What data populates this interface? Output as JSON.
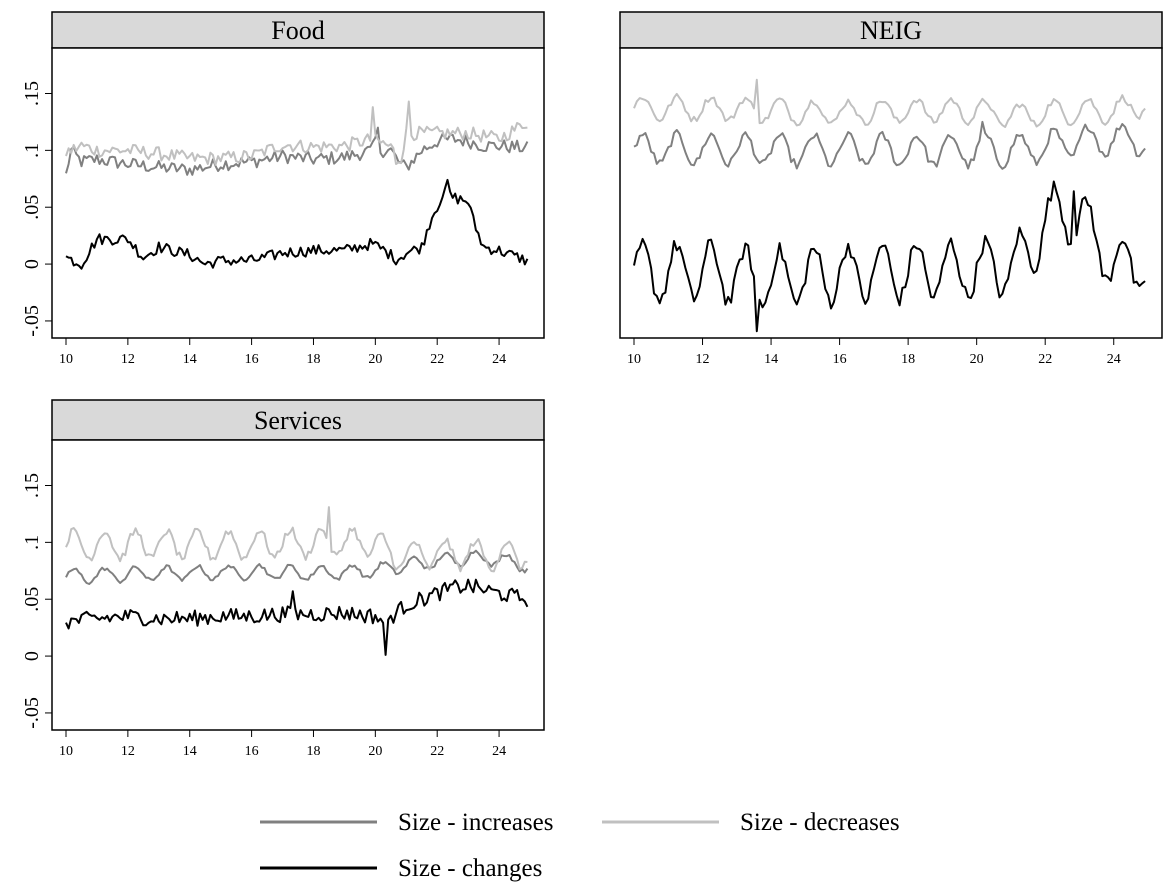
{
  "chart_data": [
    {
      "type": "line",
      "title": "Food",
      "xlim": [
        10,
        25
      ],
      "ylim": [
        -0.065,
        0.19
      ],
      "x_ticks": [
        "10",
        "12",
        "14",
        "16",
        "18",
        "20",
        "22",
        "24"
      ],
      "y_ticks": [
        "-.05",
        "0",
        ".05",
        ".1",
        ".15"
      ],
      "grid": false,
      "series": [
        {
          "name": "Size - increases",
          "color": "#808080",
          "style": "smooth",
          "base": [
            [
              10,
              0.078
            ],
            [
              10.15,
              0.1
            ],
            [
              10.5,
              0.09
            ],
            [
              11,
              0.092
            ],
            [
              12,
              0.088
            ],
            [
              13,
              0.085
            ],
            [
              14,
              0.083
            ],
            [
              15,
              0.088
            ],
            [
              16,
              0.09
            ],
            [
              17,
              0.095
            ],
            [
              18,
              0.092
            ],
            [
              19,
              0.094
            ],
            [
              19.9,
              0.1
            ],
            [
              20,
              0.11
            ],
            [
              20.1,
              0.1
            ],
            [
              20.5,
              0.1
            ],
            [
              20.8,
              0.088
            ],
            [
              21,
              0.085
            ],
            [
              21.5,
              0.1
            ],
            [
              22,
              0.108
            ],
            [
              22.5,
              0.11
            ],
            [
              23,
              0.108
            ],
            [
              23.5,
              0.104
            ],
            [
              24,
              0.104
            ],
            [
              24.9,
              0.102
            ]
          ],
          "amp": 0.006,
          "spikes": [
            [
              20.1,
              0.12
            ]
          ]
        },
        {
          "name": "Size - decreases",
          "color": "#c0c0c0",
          "style": "smooth",
          "base": [
            [
              10,
              0.098
            ],
            [
              10.5,
              0.104
            ],
            [
              11,
              0.1
            ],
            [
              12,
              0.1
            ],
            [
              13,
              0.097
            ],
            [
              14,
              0.093
            ],
            [
              15,
              0.093
            ],
            [
              16,
              0.095
            ],
            [
              17,
              0.105
            ],
            [
              18,
              0.103
            ],
            [
              19,
              0.104
            ],
            [
              19.9,
              0.11
            ],
            [
              20.5,
              0.103
            ],
            [
              20.8,
              0.09
            ],
            [
              21,
              0.115
            ],
            [
              21.5,
              0.115
            ],
            [
              22,
              0.115
            ],
            [
              22.5,
              0.115
            ],
            [
              23,
              0.115
            ],
            [
              24,
              0.11
            ],
            [
              24.9,
              0.125
            ]
          ],
          "amp": 0.006,
          "spikes": [
            [
              19.95,
              0.138
            ],
            [
              21.05,
              0.143
            ],
            [
              20.7,
              0.088
            ]
          ]
        },
        {
          "name": "Size - changes",
          "color": "#000000",
          "style": "smooth",
          "base": [
            [
              10,
              0.006
            ],
            [
              10.5,
              0.0
            ],
            [
              11,
              0.022
            ],
            [
              12,
              0.022
            ],
            [
              12.5,
              0.006
            ],
            [
              13,
              0.015
            ],
            [
              14,
              0.008
            ],
            [
              14.5,
              0.0
            ],
            [
              15,
              0.003
            ],
            [
              16,
              0.003
            ],
            [
              16.5,
              0.006
            ],
            [
              17,
              0.01
            ],
            [
              18,
              0.012
            ],
            [
              19,
              0.012
            ],
            [
              19.9,
              0.018
            ],
            [
              20.3,
              0.012
            ],
            [
              20.7,
              0.004
            ],
            [
              21,
              0.01
            ],
            [
              21.5,
              0.015
            ],
            [
              21.8,
              0.04
            ],
            [
              22.2,
              0.062
            ],
            [
              22.6,
              0.058
            ],
            [
              23,
              0.055
            ],
            [
              23.2,
              0.035
            ],
            [
              23.5,
              0.015
            ],
            [
              24,
              0.012
            ],
            [
              24.9,
              0.003
            ]
          ],
          "amp": 0.005,
          "spikes": [
            [
              22.3,
              0.074
            ]
          ]
        }
      ]
    },
    {
      "type": "line",
      "title": "NEIG",
      "xlim": [
        10,
        25
      ],
      "ylim": [
        -0.065,
        0.19
      ],
      "x_ticks": [
        "10",
        "12",
        "14",
        "16",
        "18",
        "20",
        "22",
        "24"
      ],
      "y_ticks": [],
      "grid": false,
      "series": [
        {
          "name": "Size - increases",
          "color": "#808080",
          "style": "seasonal",
          "base": [
            [
              10,
              0.101
            ],
            [
              12,
              0.101
            ],
            [
              14,
              0.1
            ],
            [
              16,
              0.1
            ],
            [
              18,
              0.1
            ],
            [
              20,
              0.1
            ],
            [
              21,
              0.1
            ],
            [
              22,
              0.103
            ],
            [
              23,
              0.108
            ],
            [
              24,
              0.11
            ],
            [
              24.9,
              0.11
            ]
          ],
          "amp": 0.013,
          "spikes": [
            [
              20.2,
              0.125
            ]
          ]
        },
        {
          "name": "Size - decreases",
          "color": "#c0c0c0",
          "style": "seasonal",
          "base": [
            [
              10,
              0.137
            ],
            [
              12,
              0.137
            ],
            [
              14,
              0.135
            ],
            [
              16,
              0.133
            ],
            [
              18,
              0.135
            ],
            [
              20,
              0.135
            ],
            [
              21,
              0.13
            ],
            [
              22,
              0.133
            ],
            [
              23,
              0.135
            ],
            [
              24,
              0.135
            ],
            [
              24.9,
              0.14
            ]
          ],
          "amp": 0.01,
          "spikes": [
            [
              13.6,
              0.162
            ]
          ]
        },
        {
          "name": "Size - changes",
          "color": "#000000",
          "style": "seasonal",
          "base": [
            [
              10,
              -0.008
            ],
            [
              12,
              -0.006
            ],
            [
              14,
              -0.013
            ],
            [
              16,
              -0.008
            ],
            [
              18,
              -0.006
            ],
            [
              20,
              -0.005
            ],
            [
              21,
              -0.002
            ],
            [
              21.5,
              0.008
            ],
            [
              22,
              0.04
            ],
            [
              22.5,
              0.045
            ],
            [
              23,
              0.042
            ],
            [
              23.5,
              0.02
            ],
            [
              24,
              0.0
            ],
            [
              24.9,
              -0.002
            ]
          ],
          "amp": 0.024,
          "spikes": [
            [
              13.6,
              -0.059
            ],
            [
              22.8,
              0.064
            ]
          ]
        }
      ]
    },
    {
      "type": "line",
      "title": "Services",
      "xlim": [
        10,
        25
      ],
      "ylim": [
        -0.065,
        0.19
      ],
      "x_ticks": [
        "10",
        "12",
        "14",
        "16",
        "18",
        "20",
        "22",
        "24"
      ],
      "y_ticks": [
        "-.05",
        "0",
        ".05",
        ".1",
        ".15"
      ],
      "grid": false,
      "series": [
        {
          "name": "Size - increases",
          "color": "#808080",
          "style": "seasonal",
          "base": [
            [
              10,
              0.07
            ],
            [
              12,
              0.072
            ],
            [
              14,
              0.073
            ],
            [
              16,
              0.074
            ],
            [
              18,
              0.073
            ],
            [
              20,
              0.075
            ],
            [
              21,
              0.08
            ],
            [
              22,
              0.083
            ],
            [
              23,
              0.087
            ],
            [
              24,
              0.085
            ],
            [
              24.9,
              0.08
            ]
          ],
          "amp": 0.006,
          "spikes": []
        },
        {
          "name": "Size - decreases",
          "color": "#c0c0c0",
          "style": "seasonal",
          "base": [
            [
              10,
              0.098
            ],
            [
              12,
              0.098
            ],
            [
              14,
              0.098
            ],
            [
              16,
              0.098
            ],
            [
              18,
              0.1
            ],
            [
              20,
              0.1
            ],
            [
              20.4,
              0.09
            ],
            [
              21,
              0.088
            ],
            [
              22,
              0.09
            ],
            [
              23,
              0.09
            ],
            [
              24,
              0.088
            ],
            [
              24.9,
              0.09
            ]
          ],
          "amp": 0.012,
          "spikes": [
            [
              18.5,
              0.131
            ]
          ]
        },
        {
          "name": "Size - changes",
          "color": "#000000",
          "style": "smooth",
          "base": [
            [
              10,
              0.03
            ],
            [
              11,
              0.033
            ],
            [
              12,
              0.035
            ],
            [
              13,
              0.033
            ],
            [
              14,
              0.033
            ],
            [
              15,
              0.035
            ],
            [
              16,
              0.035
            ],
            [
              17,
              0.037
            ],
            [
              18,
              0.037
            ],
            [
              19,
              0.038
            ],
            [
              20,
              0.035
            ],
            [
              20.3,
              0.03
            ],
            [
              21,
              0.045
            ],
            [
              22,
              0.055
            ],
            [
              22.5,
              0.06
            ],
            [
              23,
              0.062
            ],
            [
              24,
              0.055
            ],
            [
              24.9,
              0.05
            ]
          ],
          "amp": 0.007,
          "spikes": [
            [
              20.3,
              0.001
            ],
            [
              17.3,
              0.057
            ]
          ]
        }
      ]
    }
  ],
  "legend": {
    "entries": [
      {
        "label": "Size - increases",
        "color": "#808080"
      },
      {
        "label": "Size - decreases",
        "color": "#c0c0c0"
      },
      {
        "label": "Size - changes",
        "color": "#000000"
      }
    ]
  }
}
